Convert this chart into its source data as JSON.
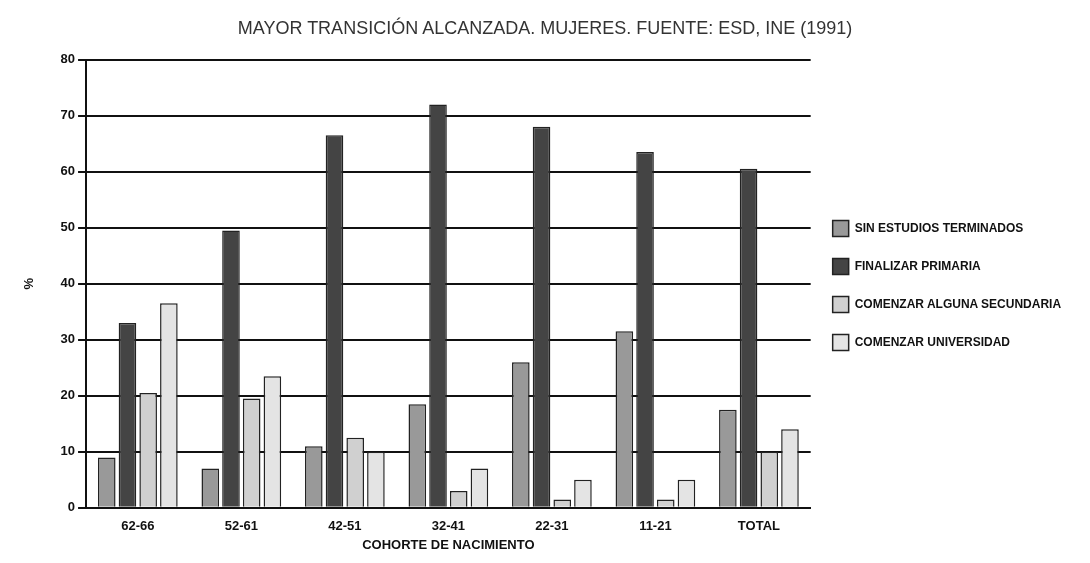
{
  "chart_data": {
    "type": "bar",
    "title": "MAYOR TRANSICIÓN ALCANZADA. MUJERES. FUENTE: ESD, INE (1991)",
    "xlabel": "COHORTE DE NACIMIENTO",
    "ylabel": "%",
    "categories": [
      "62-66",
      "52-61",
      "42-51",
      "32-41",
      "22-31",
      "11-21",
      "TOTAL"
    ],
    "series": [
      {
        "name": "SIN ESTUDIOS TERMINADOS",
        "color": "#999999",
        "values": [
          9,
          7,
          11,
          18.5,
          26,
          31.5,
          17.5
        ]
      },
      {
        "name": "FINALIZAR PRIMARIA",
        "color": "#444444",
        "values": [
          33,
          49.5,
          66.5,
          72,
          68,
          63.5,
          60.5
        ]
      },
      {
        "name": "COMENZAR ALGUNA SECUNDARIA",
        "color": "#d0d0d0",
        "values": [
          20.5,
          19.5,
          12.5,
          3,
          1.5,
          1.5,
          10
        ]
      },
      {
        "name": "COMENZAR UNIVERSIDAD",
        "color": "#e4e4e4",
        "values": [
          36.5,
          23.5,
          10,
          7,
          5,
          5,
          14
        ]
      }
    ],
    "ylim": [
      0,
      80
    ],
    "yticks": [
      0,
      10,
      20,
      30,
      40,
      50,
      60,
      70,
      80
    ],
    "grid": "y",
    "legend": "right"
  }
}
